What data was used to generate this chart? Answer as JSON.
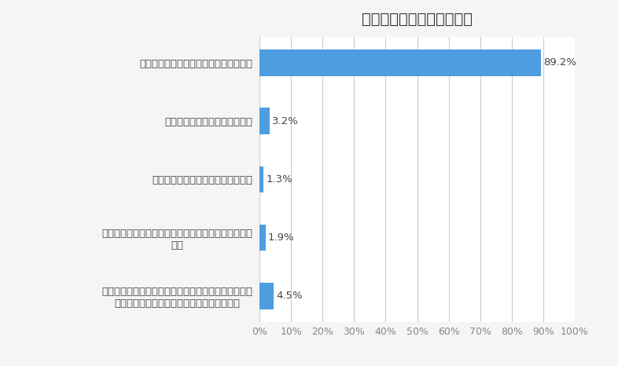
{
  "title": "今後の就活をどう進めるか",
  "categories": [
    "１．内定が出るまで民間就活を継続する",
    "２．公務員就活を並行して行う",
    "３．大学院への進学を並行して行う",
    "４．納得のいく内定を取得できなければ、就職留年を\nする",
    "５．納得のいく内定を取得できなければ、卒業して、\n非正規雇用（アルバイト、派遣など）で働く"
  ],
  "values": [
    89.2,
    3.2,
    1.3,
    1.9,
    4.5
  ],
  "bar_color": "#4d9de0",
  "background_color": "#f5f5f5",
  "plot_bg_color": "#ffffff",
  "title_fontsize": 14,
  "label_fontsize": 9.5,
  "tick_fontsize": 9,
  "xlim": [
    0,
    100
  ],
  "xticks": [
    0,
    10,
    20,
    30,
    40,
    50,
    60,
    70,
    80,
    90,
    100
  ],
  "xtick_labels": [
    "0%",
    "10%",
    "20%",
    "30%",
    "40%",
    "50%",
    "60%",
    "70%",
    "80%",
    "90%",
    "100%"
  ],
  "grid_color": "#cccccc",
  "label_color": "#444444",
  "tick_color": "#888888"
}
